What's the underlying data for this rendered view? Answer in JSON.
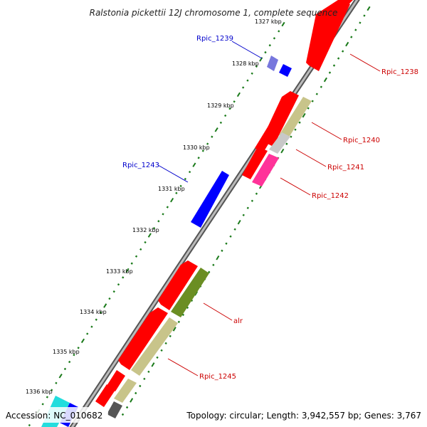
{
  "title": "Ralstonia pickettii 12J chromosome 1, complete sequence",
  "footer": {
    "accession": "Accession: NC_010682",
    "summary": "Topology: circular; Length: 3,942,557 bp; Genes: 3,767"
  },
  "colors": {
    "backbone": "#888888",
    "forward_label": "#cc0000",
    "reverse_label": "#0000cc",
    "tick_dot": "#1a7a1a"
  },
  "kbp_labels": [
    "1327 kbp",
    "1328 kbp",
    "1329 kbp",
    "1330 kbp",
    "1331 kbp",
    "1332 kbp",
    "1333 kbp",
    "1334 kbp",
    "1335 kbp",
    "1336 kbp"
  ],
  "gene_labels": {
    "rpic_1238": "Rpic_1238",
    "rpic_1239": "Rpic_1239",
    "rpic_1240": "Rpic_1240",
    "rpic_1241": "Rpic_1241",
    "rpic_1242": "Rpic_1242",
    "rpic_1243": "Rpic_1243",
    "alr": "alr",
    "rpic_1245": "Rpic_1245"
  },
  "gene_colors": {
    "cds_forward": "#ff0000",
    "cds_reverse": "#0000ff",
    "cds_reverse_light": "#7777dd",
    "orf_khaki": "#c8c48a",
    "orf_olive": "#6b8e23",
    "orf_grey": "#c8c8c8",
    "orf_pink": "#ff3399",
    "cds_cyan": "#22dddd",
    "cds_dark": "#555555"
  }
}
